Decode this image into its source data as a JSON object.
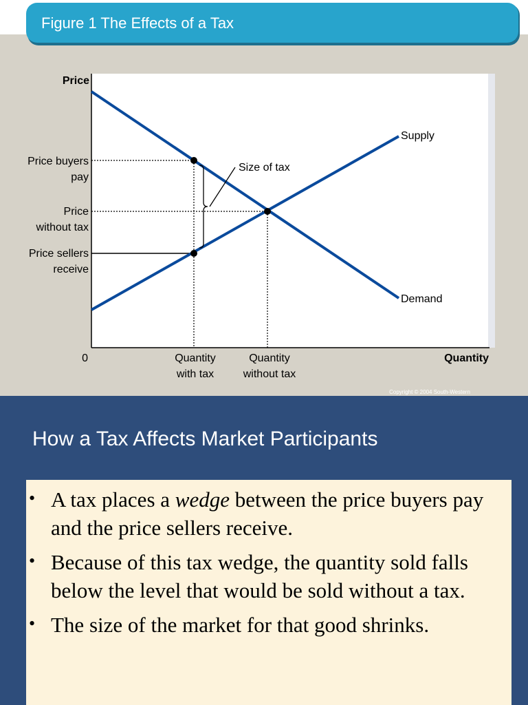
{
  "header": {
    "title": "Figure 1 The Effects of a Tax"
  },
  "diagram": {
    "y_axis_label": "Price",
    "x_axis_label": "Quantity",
    "origin_label": "0",
    "price_buyers_pay": [
      "Price buyers",
      "pay"
    ],
    "price_without_tax": [
      "Price",
      "without tax"
    ],
    "price_sellers_receive": [
      "Price sellers",
      "receive"
    ],
    "quantity_with_tax": [
      "Quantity",
      "with tax"
    ],
    "quantity_without_tax": [
      "Quantity",
      "without tax"
    ],
    "supply_label": "Supply",
    "demand_label": "Demand",
    "tax_label": "Size of tax",
    "copyright": "Copyright © 2004 South-Western"
  },
  "section": {
    "title": "How a Tax Affects Market Participants",
    "bullets": [
      {
        "before": "A tax places a ",
        "emphasis": "wedge",
        "after": " between the price buyers pay and the price sellers receive."
      },
      {
        "text": "Because of this tax wedge, the quantity sold falls below the level that would be sold without a tax."
      },
      {
        "text": "The size of the market for that good shrinks."
      }
    ]
  }
}
